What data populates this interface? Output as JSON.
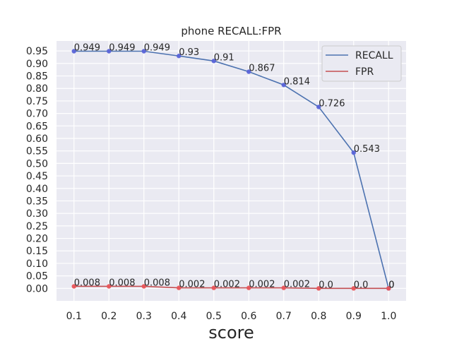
{
  "chart_data": {
    "type": "line",
    "title": "phone RECALL:FPR",
    "xlabel": "score",
    "ylabel": "",
    "x": [
      0.1,
      0.2,
      0.3,
      0.4,
      0.5,
      0.6,
      0.7,
      0.8,
      0.9,
      1.0
    ],
    "x_tick_labels": [
      "0.1",
      "0.2",
      "0.3",
      "0.4",
      "0.5",
      "0.6",
      "0.7",
      "0.8",
      "0.9",
      "1.0"
    ],
    "y_ticks": [
      0.0,
      0.05,
      0.1,
      0.15,
      0.2,
      0.25,
      0.3,
      0.35,
      0.4,
      0.45,
      0.5,
      0.55,
      0.6,
      0.65,
      0.7,
      0.75,
      0.8,
      0.85,
      0.9,
      0.95
    ],
    "y_tick_labels": [
      "0.00",
      "0.05",
      "0.10",
      "0.15",
      "0.20",
      "0.25",
      "0.30",
      "0.35",
      "0.40",
      "0.45",
      "0.50",
      "0.55",
      "0.60",
      "0.65",
      "0.70",
      "0.75",
      "0.80",
      "0.85",
      "0.90",
      "0.95"
    ],
    "xlim": [
      0.05,
      1.05
    ],
    "ylim": [
      -0.05,
      0.99
    ],
    "grid": true,
    "legend_position": "top-right",
    "series": [
      {
        "name": "RECALL",
        "color": "#4c72b0",
        "marker_color": "#5a64d8",
        "values": [
          0.949,
          0.949,
          0.949,
          0.93,
          0.91,
          0.867,
          0.814,
          0.726,
          0.543,
          0
        ],
        "labels": [
          "0.949",
          "0.949",
          "0.949",
          "0.93",
          "0.91",
          "0.867",
          "0.814",
          "0.726",
          "0.543",
          "0"
        ]
      },
      {
        "name": "FPR",
        "color": "#c44e52",
        "marker_color": "#e8555a",
        "values": [
          0.008,
          0.008,
          0.008,
          0.002,
          0.002,
          0.002,
          0.002,
          0.0,
          0.0,
          0
        ],
        "labels": [
          "0.008",
          "0.008",
          "0.008",
          "0.002",
          "0.002",
          "0.002",
          "0.002",
          "0.0",
          "0.0",
          "0"
        ]
      }
    ]
  }
}
